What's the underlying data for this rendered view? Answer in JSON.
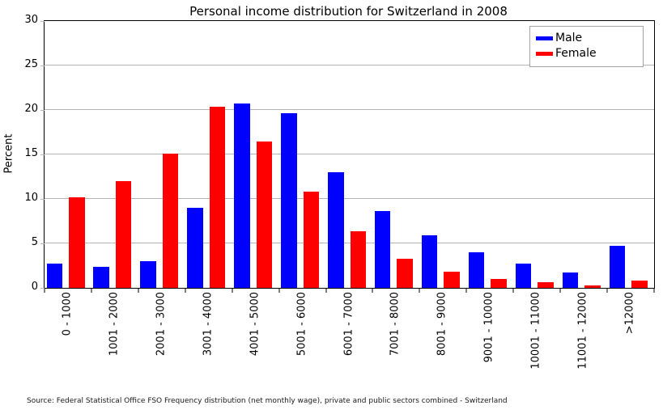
{
  "chart_data": {
    "type": "bar",
    "title": "Personal income distribution for Switzerland in 2008",
    "xlabel": "",
    "ylabel": "Percent",
    "ylim": [
      0,
      30
    ],
    "yticks": [
      0,
      5,
      10,
      15,
      20,
      25,
      30
    ],
    "grid": true,
    "legend_position": "top-right",
    "categories": [
      "0 - 1000",
      "1001 - 2000",
      "2001 - 3000",
      "3001 - 4000",
      "4001 - 5000",
      "5001 - 6000",
      "6001 - 7000",
      "7001 - 8000",
      "8001 - 9000",
      "9001 - 10000",
      "10001 - 11000",
      "11001 - 12000",
      ">12000"
    ],
    "series": [
      {
        "name": "Male",
        "color": "#0000ff",
        "values": [
          2.7,
          2.4,
          3.0,
          9.0,
          20.7,
          19.6,
          13.0,
          8.6,
          5.9,
          4.0,
          2.7,
          1.7,
          4.7
        ]
      },
      {
        "name": "Female",
        "color": "#ff0000",
        "values": [
          10.2,
          12.0,
          15.1,
          20.4,
          16.5,
          10.8,
          6.4,
          3.3,
          1.8,
          1.0,
          0.6,
          0.3,
          0.8
        ]
      }
    ],
    "source": "Source: Federal Statistical Office FSO Frequency distribution (net monthly wage), private and public sectors combined - Switzerland"
  },
  "colors": {
    "male": "#0000ff",
    "female": "#ff0000",
    "grid": "#b4b4b4",
    "frame": "#000000",
    "background": "#ffffff"
  }
}
